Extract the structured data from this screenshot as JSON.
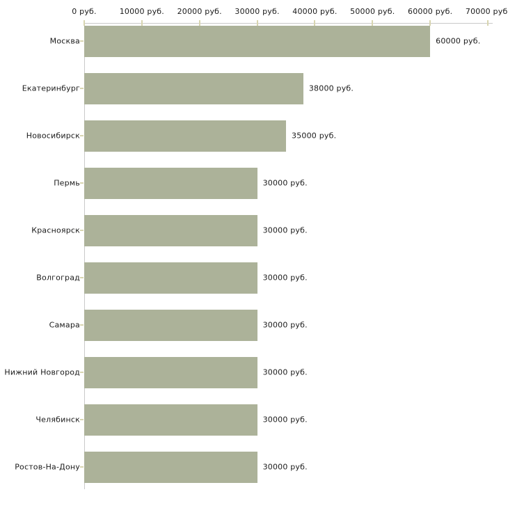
{
  "chart_data": {
    "type": "bar",
    "orientation": "horizontal",
    "title": "",
    "xlabel": "",
    "ylabel": "",
    "unit": "руб.",
    "categories": [
      "Москва",
      "Екатеринбург",
      "Новосибирск",
      "Пермь",
      "Красноярск",
      "Волгоград",
      "Самара",
      "Нижний Новгород",
      "Челябинск",
      "Ростов-На-Дону"
    ],
    "values": [
      60000,
      38000,
      35000,
      30000,
      30000,
      30000,
      30000,
      30000,
      30000,
      30000
    ],
    "value_labels": [
      "60000 руб.",
      "38000 руб.",
      "35000 руб.",
      "30000 руб.",
      "30000 руб.",
      "30000 руб.",
      "30000 руб.",
      "30000 руб.",
      "30000 руб.",
      "30000 руб."
    ],
    "x_ticks": [
      0,
      10000,
      20000,
      30000,
      40000,
      50000,
      60000,
      70000
    ],
    "x_tick_labels": [
      "0 руб.",
      "10000 руб.",
      "20000 руб.",
      "30000 руб.",
      "40000 руб.",
      "50000 руб.",
      "60000 руб.",
      "70000 руб."
    ],
    "xlim": [
      0,
      70000
    ],
    "grid": false,
    "legend": false,
    "colors": {
      "bar_fill": "#acb299",
      "axis_line": "#c9c9c9",
      "tick_mark": "#d8d5b0",
      "text": "#1a1a1a",
      "background": "#ffffff"
    }
  }
}
